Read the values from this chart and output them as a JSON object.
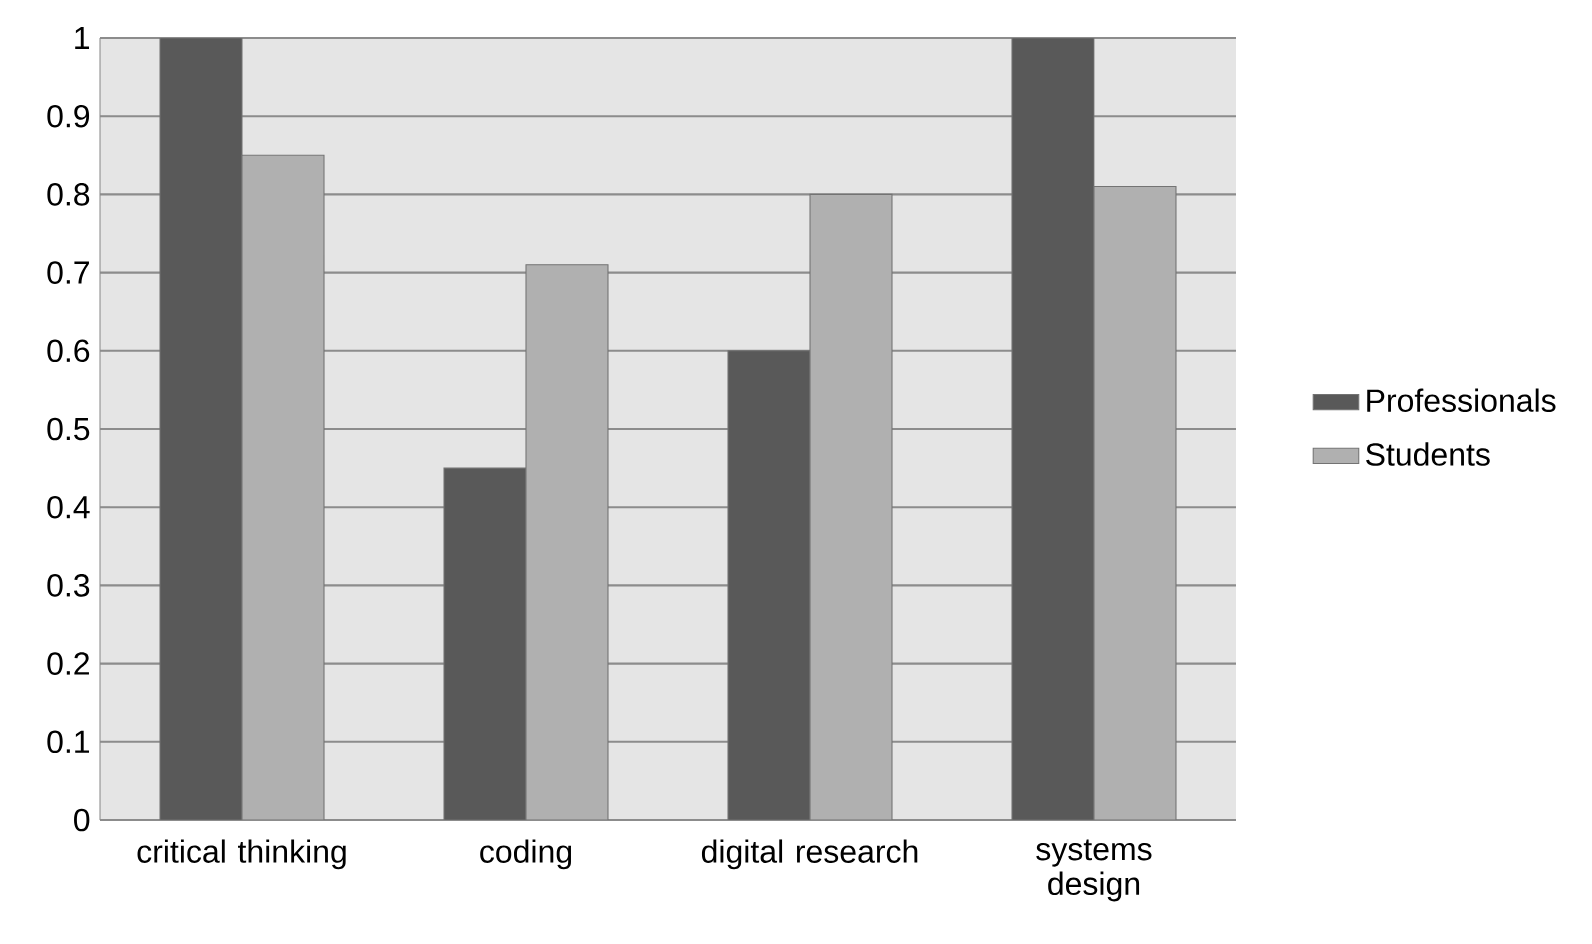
{
  "chart_data": {
    "type": "bar",
    "categories": [
      "critical thinking",
      "coding",
      "digital research",
      "systems design"
    ],
    "series": [
      {
        "name": "Professionals",
        "color": "#595959",
        "values": [
          1,
          0.45,
          0.6,
          1
        ]
      },
      {
        "name": "Students",
        "color": "#b0b0b0",
        "values": [
          0.85,
          0.71,
          0.8,
          0.81
        ]
      }
    ],
    "ylim": [
      0,
      1
    ],
    "yticks": [
      0,
      0.1,
      0.2,
      0.3,
      0.4,
      0.5,
      0.6,
      0.7,
      0.8,
      0.9,
      1
    ],
    "grid": "y",
    "legend": "right"
  }
}
